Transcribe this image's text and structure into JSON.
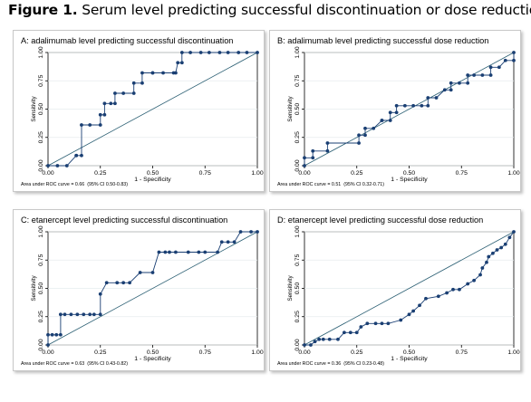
{
  "figure": {
    "label": "Figure 1.",
    "title": "Serum level predicting successful discontinuation or dose reduction"
  },
  "chart_data": [
    {
      "type": "line",
      "panel_title": "A: adalimumab level predicting successful discontinuation",
      "xlabel": "1 - Specificity",
      "ylabel": "Sensitivity",
      "xlim": [
        0,
        1
      ],
      "ylim": [
        0,
        1
      ],
      "xticks": [
        "0.00",
        "0.25",
        "0.50",
        "0.75",
        "1.00"
      ],
      "yticks": [
        "0.00",
        "0.25",
        "0.50",
        "0.75",
        "1.00"
      ],
      "footnote": "Area under ROC curve = 0.66",
      "ci": "(95% CI 0.50-0.83)",
      "reference_line": true,
      "series": [
        {
          "x": [
            0,
            0.045,
            0.09,
            0.135,
            0.135,
            0.16,
            0.16,
            0.2,
            0.25,
            0.25,
            0.27,
            0.27,
            0.3,
            0.32,
            0.32,
            0.36,
            0.41,
            0.41,
            0.45,
            0.45,
            0.5,
            0.5,
            0.55,
            0.6,
            0.61,
            0.62,
            0.64,
            0.64,
            0.68,
            0.73,
            0.77,
            0.82,
            0.86,
            0.91,
            0.95,
            1.0
          ],
          "y": [
            0,
            0,
            0,
            0.09,
            0.09,
            0.09,
            0.36,
            0.36,
            0.36,
            0.45,
            0.45,
            0.55,
            0.55,
            0.55,
            0.64,
            0.64,
            0.64,
            0.73,
            0.73,
            0.82,
            0.82,
            0.82,
            0.82,
            0.82,
            0.82,
            0.91,
            0.91,
            1.0,
            1.0,
            1.0,
            1.0,
            1.0,
            1.0,
            1.0,
            1.0,
            1.0
          ]
        }
      ]
    },
    {
      "type": "line",
      "panel_title": "B: adalimumab level predicting successful dose reduction",
      "xlabel": "1 - Specificity",
      "ylabel": "Sensitivity",
      "xlim": [
        0,
        1
      ],
      "ylim": [
        0,
        1
      ],
      "xticks": [
        "0.00",
        "0.25",
        "0.50",
        "0.75",
        "1.00"
      ],
      "yticks": [
        "0.00",
        "0.25",
        "0.50",
        "0.75",
        "1.00"
      ],
      "footnote": "Area under ROC curve = 0.51",
      "ci": "(95% CI 0.32-0.71)",
      "reference_line": true,
      "series": [
        {
          "x": [
            0,
            0,
            0.04,
            0.04,
            0.11,
            0.11,
            0.26,
            0.26,
            0.29,
            0.29,
            0.33,
            0.37,
            0.37,
            0.41,
            0.41,
            0.44,
            0.44,
            0.48,
            0.52,
            0.56,
            0.59,
            0.59,
            0.63,
            0.67,
            0.7,
            0.7,
            0.74,
            0.78,
            0.78,
            0.81,
            0.85,
            0.89,
            0.89,
            0.93,
            0.96,
            1.0,
            1.0
          ],
          "y": [
            0,
            0.07,
            0.07,
            0.13,
            0.13,
            0.2,
            0.2,
            0.27,
            0.27,
            0.33,
            0.33,
            0.4,
            0.4,
            0.4,
            0.47,
            0.47,
            0.53,
            0.53,
            0.53,
            0.53,
            0.53,
            0.6,
            0.6,
            0.67,
            0.67,
            0.73,
            0.73,
            0.73,
            0.8,
            0.8,
            0.8,
            0.8,
            0.87,
            0.87,
            0.93,
            0.93,
            1.0
          ]
        }
      ]
    },
    {
      "type": "line",
      "panel_title": "C: etanercept level predicting successful discontinuation",
      "xlabel": "1 - Specificity",
      "ylabel": "Sensitivity",
      "xlim": [
        0,
        1
      ],
      "ylim": [
        0,
        1
      ],
      "xticks": [
        "0.00",
        "0.25",
        "0.50",
        "0.75",
        "1.00"
      ],
      "yticks": [
        "0.00",
        "0.25",
        "0.50",
        "0.75",
        "1.00"
      ],
      "footnote": "Area under ROC curve = 0.63",
      "ci": "(95% CI 0.43-0.82)",
      "reference_line": true,
      "series": [
        {
          "x": [
            0,
            0,
            0.02,
            0.04,
            0.06,
            0.06,
            0.08,
            0.11,
            0.14,
            0.17,
            0.2,
            0.22,
            0.25,
            0.25,
            0.28,
            0.33,
            0.36,
            0.39,
            0.44,
            0.5,
            0.53,
            0.56,
            0.58,
            0.61,
            0.67,
            0.72,
            0.75,
            0.81,
            0.83,
            0.86,
            0.89,
            0.92,
            0.97,
            1.0
          ],
          "y": [
            0,
            0.09,
            0.09,
            0.09,
            0.09,
            0.27,
            0.27,
            0.27,
            0.27,
            0.27,
            0.27,
            0.27,
            0.27,
            0.45,
            0.55,
            0.55,
            0.55,
            0.55,
            0.64,
            0.64,
            0.82,
            0.82,
            0.82,
            0.82,
            0.82,
            0.82,
            0.82,
            0.82,
            0.91,
            0.91,
            0.91,
            1.0,
            1.0,
            1.0
          ]
        }
      ]
    },
    {
      "type": "line",
      "panel_title": "D: etanercept level predicting successful dose reduction",
      "xlabel": "1 - Specificity",
      "ylabel": "Sensitivity",
      "xlim": [
        0,
        1
      ],
      "ylim": [
        0,
        1
      ],
      "xticks": [
        "0.00",
        "0.25",
        "0.50",
        "0.75",
        "1.00"
      ],
      "yticks": [
        "0.00",
        "0.25",
        "0.50",
        "0.75",
        "1.00"
      ],
      "footnote": "Area under ROC curve = 0.36",
      "ci": "(95% CI 0.23-0.48)",
      "reference_line": true,
      "series": [
        {
          "x": [
            0,
            0.03,
            0.05,
            0.07,
            0.09,
            0.12,
            0.16,
            0.19,
            0.22,
            0.25,
            0.27,
            0.3,
            0.34,
            0.37,
            0.4,
            0.46,
            0.5,
            0.52,
            0.55,
            0.58,
            0.64,
            0.68,
            0.71,
            0.74,
            0.78,
            0.81,
            0.84,
            0.85,
            0.87,
            0.88,
            0.9,
            0.92,
            0.94,
            0.96,
            0.98,
            1.0
          ],
          "y": [
            0,
            0,
            0.03,
            0.05,
            0.05,
            0.05,
            0.05,
            0.11,
            0.11,
            0.11,
            0.16,
            0.19,
            0.19,
            0.19,
            0.19,
            0.22,
            0.27,
            0.3,
            0.35,
            0.41,
            0.43,
            0.46,
            0.49,
            0.49,
            0.54,
            0.57,
            0.62,
            0.68,
            0.73,
            0.78,
            0.81,
            0.84,
            0.86,
            0.89,
            0.95,
            1.0
          ]
        }
      ]
    }
  ]
}
